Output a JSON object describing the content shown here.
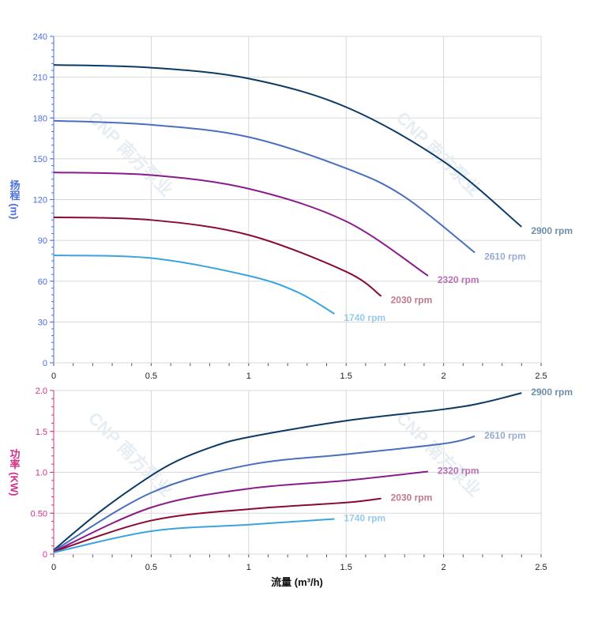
{
  "watermark": "CNP 南方泵业",
  "chart_data": [
    {
      "type": "line",
      "ylabel": "扬程 (m)",
      "xlabel": "",
      "xlim": [
        0,
        2.5
      ],
      "ylim": [
        0,
        240
      ],
      "xticks": [
        "0",
        "0.5",
        "1",
        "1.5",
        "2",
        "2.5"
      ],
      "yticks": [
        "0",
        "30",
        "60",
        "90",
        "120",
        "150",
        "180",
        "210",
        "240"
      ],
      "axis_color": "#4a6ee0",
      "grid": true,
      "series": [
        {
          "name": "2900 rpm",
          "color": "#0b3a66",
          "label_color": "#6f8fa8",
          "x": [
            0,
            0.5,
            1,
            1.5,
            2,
            2.4
          ],
          "y": [
            219,
            217,
            209,
            188,
            148,
            100
          ]
        },
        {
          "name": "2610 rpm",
          "color": "#4a6fbf",
          "label_color": "#98aad6",
          "x": [
            0,
            0.5,
            1,
            1.5,
            1.8,
            2.16
          ],
          "y": [
            178,
            175,
            166,
            143,
            122,
            81
          ]
        },
        {
          "name": "2320 rpm",
          "color": "#8a1a8c",
          "label_color": "#b772b8",
          "x": [
            0,
            0.5,
            1,
            1.5,
            1.92
          ],
          "y": [
            140,
            138,
            128,
            104,
            64
          ]
        },
        {
          "name": "2030 rpm",
          "color": "#8a0b32",
          "label_color": "#c07a8c",
          "x": [
            0,
            0.5,
            1,
            1.5,
            1.68
          ],
          "y": [
            107,
            105,
            94,
            67,
            49
          ]
        },
        {
          "name": "1740 rpm",
          "color": "#3aa4df",
          "label_color": "#96cbec",
          "x": [
            0,
            0.5,
            1,
            1.25,
            1.44
          ],
          "y": [
            79,
            77,
            64,
            52,
            36
          ]
        }
      ]
    },
    {
      "type": "line",
      "ylabel": "功率 (KW)",
      "xlabel": "流量 (m³/h)",
      "xlim": [
        0,
        2.5
      ],
      "ylim": [
        0,
        2
      ],
      "xticks": [
        "0",
        "0.5",
        "1",
        "1.5",
        "2",
        "2.5"
      ],
      "yticks": [
        "0",
        "0.50",
        "1.0",
        "1.5",
        "2.0"
      ],
      "axis_color": "#d0308a",
      "grid": true,
      "series": [
        {
          "name": "2900 rpm",
          "color": "#0b3a66",
          "label_color": "#6f8fa8",
          "x": [
            0,
            0.2,
            0.4,
            0.6,
            0.8,
            1,
            1.5,
            2,
            2.2,
            2.4
          ],
          "y": [
            0.05,
            0.45,
            0.8,
            1.1,
            1.3,
            1.43,
            1.63,
            1.77,
            1.85,
            1.97
          ]
        },
        {
          "name": "2610 rpm",
          "color": "#4a6fbf",
          "label_color": "#98aad6",
          "x": [
            0,
            0.5,
            1,
            1.5,
            2,
            2.16
          ],
          "y": [
            0.04,
            0.75,
            1.09,
            1.22,
            1.35,
            1.44
          ]
        },
        {
          "name": "2320 rpm",
          "color": "#8a1a8c",
          "label_color": "#b772b8",
          "x": [
            0,
            0.5,
            1,
            1.5,
            1.92
          ],
          "y": [
            0.03,
            0.57,
            0.8,
            0.9,
            1.01
          ]
        },
        {
          "name": "2030 rpm",
          "color": "#8a0b32",
          "label_color": "#c07a8c",
          "x": [
            0,
            0.5,
            1,
            1.5,
            1.68
          ],
          "y": [
            0.03,
            0.41,
            0.55,
            0.63,
            0.68
          ]
        },
        {
          "name": "1740 rpm",
          "color": "#3aa4df",
          "label_color": "#96cbec",
          "x": [
            0,
            0.5,
            1,
            1.44
          ],
          "y": [
            0.02,
            0.28,
            0.36,
            0.43
          ]
        }
      ]
    }
  ]
}
